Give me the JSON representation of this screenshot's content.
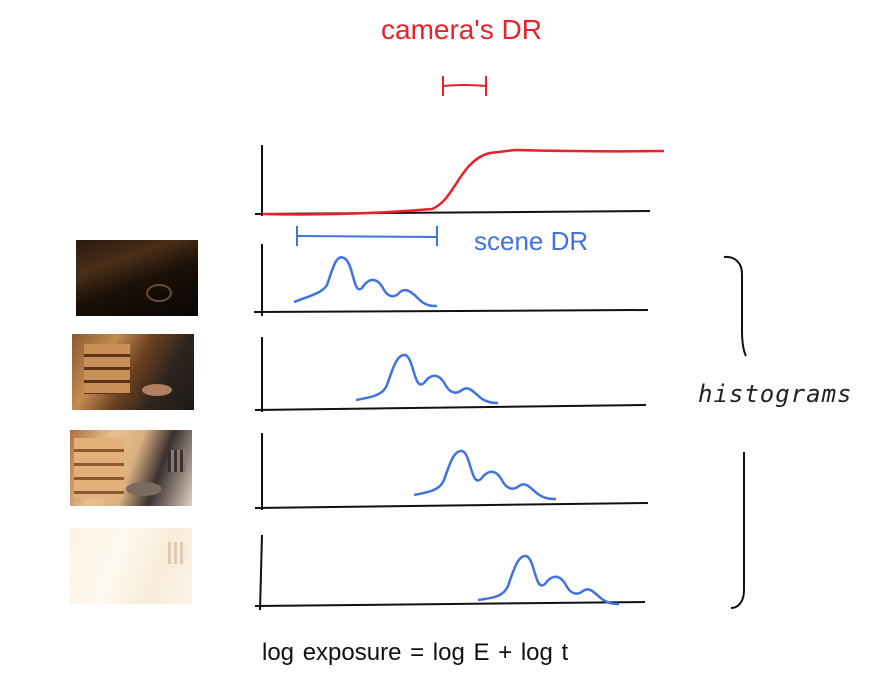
{
  "labels": {
    "camera_dr": "camera's DR",
    "scene_dr": "scene DR",
    "histograms": "histograms",
    "log_exposure": "log exposure  =  log E  +  log t"
  },
  "colors": {
    "camera": "#e8212a",
    "scene": "#3f73e0",
    "axis": "#111111"
  },
  "thumbnails": [
    {
      "exposure": "very dark"
    },
    {
      "exposure": "dark"
    },
    {
      "exposure": "bright"
    },
    {
      "exposure": "overexposed"
    }
  ]
}
